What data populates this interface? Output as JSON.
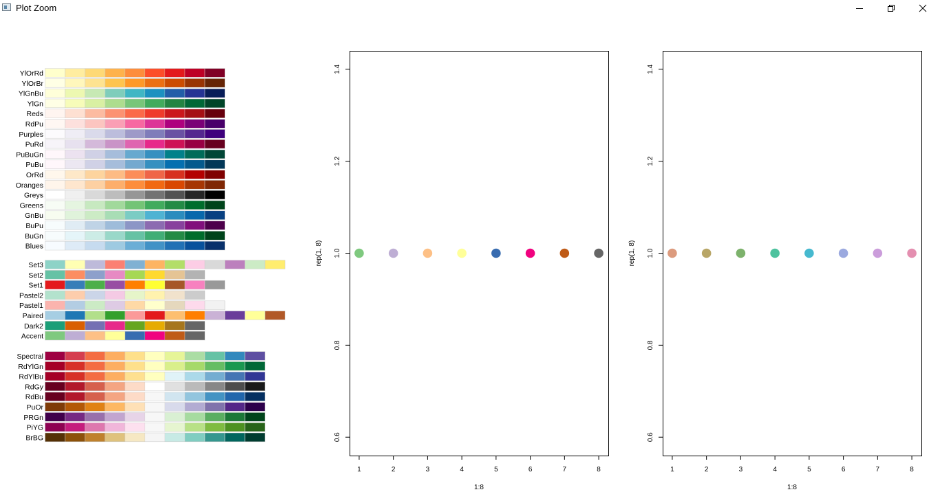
{
  "window": {
    "title": "Plot Zoom",
    "controls": [
      "minimize",
      "restore",
      "close"
    ]
  },
  "palette_display": {
    "sequential": [
      {
        "name": "YlOrRd",
        "colors": [
          "#FFFFCC",
          "#FFEDA0",
          "#FED976",
          "#FEB24C",
          "#FD8D3C",
          "#FC4E2A",
          "#E31A1C",
          "#BD0026",
          "#800026"
        ]
      },
      {
        "name": "YlOrBr",
        "colors": [
          "#FFFFE5",
          "#FFF7BC",
          "#FEE391",
          "#FEC44F",
          "#FE9929",
          "#EC7014",
          "#CC4C02",
          "#993404",
          "#662506"
        ]
      },
      {
        "name": "YlGnBu",
        "colors": [
          "#FFFFD9",
          "#EDF8B1",
          "#C7E9B4",
          "#7FCDBB",
          "#41B6C4",
          "#1D91C0",
          "#225EA8",
          "#253494",
          "#081D58"
        ]
      },
      {
        "name": "YlGn",
        "colors": [
          "#FFFFE5",
          "#F7FCB9",
          "#D9F0A3",
          "#ADDD8E",
          "#78C679",
          "#41AB5D",
          "#238443",
          "#006837",
          "#004529"
        ]
      },
      {
        "name": "Reds",
        "colors": [
          "#FFF5F0",
          "#FEE0D2",
          "#FCBBA1",
          "#FC9272",
          "#FB6A4A",
          "#EF3B2C",
          "#CB181D",
          "#A50F15",
          "#67000D"
        ]
      },
      {
        "name": "RdPu",
        "colors": [
          "#FFF7F3",
          "#FDE0DD",
          "#FCC5C0",
          "#FA9FB5",
          "#F768A1",
          "#DD3497",
          "#AE017E",
          "#7A0177",
          "#49006A"
        ]
      },
      {
        "name": "Purples",
        "colors": [
          "#FCFBFD",
          "#EFEDF5",
          "#DADAEB",
          "#BCBDDC",
          "#9E9AC8",
          "#807DBA",
          "#6A51A3",
          "#54278F",
          "#3F007D"
        ]
      },
      {
        "name": "PuRd",
        "colors": [
          "#F7F4F9",
          "#E7E1EF",
          "#D4B9DA",
          "#C994C7",
          "#DF65B0",
          "#E7298A",
          "#CE1256",
          "#980043",
          "#67001F"
        ]
      },
      {
        "name": "PuBuGn",
        "colors": [
          "#FFF7FB",
          "#ECE2F0",
          "#D0D1E6",
          "#A6BDDB",
          "#67A9CF",
          "#3690C0",
          "#02818A",
          "#016C59",
          "#014636"
        ]
      },
      {
        "name": "PuBu",
        "colors": [
          "#FFF7FB",
          "#ECE7F2",
          "#D0D1E6",
          "#A6BDDB",
          "#74A9CF",
          "#3690C0",
          "#0570B0",
          "#045A8D",
          "#023858"
        ]
      },
      {
        "name": "OrRd",
        "colors": [
          "#FFF7EC",
          "#FEE8C8",
          "#FDD49E",
          "#FDBB84",
          "#FC8D59",
          "#EF6548",
          "#D7301F",
          "#B30000",
          "#7F0000"
        ]
      },
      {
        "name": "Oranges",
        "colors": [
          "#FFF5EB",
          "#FEE6CE",
          "#FDD0A2",
          "#FDAE6B",
          "#FD8D3C",
          "#F16913",
          "#D94801",
          "#A63603",
          "#7F2704"
        ]
      },
      {
        "name": "Greys",
        "colors": [
          "#FFFFFF",
          "#F0F0F0",
          "#D9D9D9",
          "#BDBDBD",
          "#969696",
          "#737373",
          "#525252",
          "#252525",
          "#000000"
        ]
      },
      {
        "name": "Greens",
        "colors": [
          "#F7FCF5",
          "#E5F5E0",
          "#C7E9C0",
          "#A1D99B",
          "#74C476",
          "#41AB5D",
          "#238B45",
          "#006D2C",
          "#00441B"
        ]
      },
      {
        "name": "GnBu",
        "colors": [
          "#F7FCF0",
          "#E0F3DB",
          "#CCEBC5",
          "#A8DDB5",
          "#7BCCC4",
          "#4EB3D3",
          "#2B8CBE",
          "#0868AC",
          "#084081"
        ]
      },
      {
        "name": "BuPu",
        "colors": [
          "#F7FCFD",
          "#E0ECF4",
          "#BFD3E6",
          "#9EBCDA",
          "#8C96C6",
          "#8C6BB1",
          "#88419D",
          "#810F7C",
          "#4D004B"
        ]
      },
      {
        "name": "BuGn",
        "colors": [
          "#F7FCFD",
          "#E5F5F9",
          "#CCECE6",
          "#99D8C9",
          "#66C2A4",
          "#41AE76",
          "#238B45",
          "#006D2C",
          "#00441B"
        ]
      },
      {
        "name": "Blues",
        "colors": [
          "#F7FBFF",
          "#DEEBF7",
          "#C6DBEF",
          "#9ECAE1",
          "#6BAED6",
          "#4292C6",
          "#2171B5",
          "#08519C",
          "#08306B"
        ]
      }
    ],
    "qualitative": [
      {
        "name": "Set3",
        "colors": [
          "#8DD3C7",
          "#FFFFB3",
          "#BEBADA",
          "#FB8072",
          "#80B1D3",
          "#FDB462",
          "#B3DE69",
          "#FCCDE5",
          "#D9D9D9",
          "#BC80BD",
          "#CCEBC5",
          "#FFED6F"
        ]
      },
      {
        "name": "Set2",
        "colors": [
          "#66C2A5",
          "#FC8D62",
          "#8DA0CB",
          "#E78AC3",
          "#A6D854",
          "#FFD92F",
          "#E5C494",
          "#B3B3B3"
        ]
      },
      {
        "name": "Set1",
        "colors": [
          "#E41A1C",
          "#377EB8",
          "#4DAF4A",
          "#984EA3",
          "#FF7F00",
          "#FFFF33",
          "#A65628",
          "#F781BF",
          "#999999"
        ]
      },
      {
        "name": "Pastel2",
        "colors": [
          "#B3E2CD",
          "#FDCDAC",
          "#CBD5E8",
          "#F4CAE4",
          "#E6F5C9",
          "#FFF2AE",
          "#F1E2CC",
          "#CCCCCC"
        ]
      },
      {
        "name": "Pastel1",
        "colors": [
          "#FBB4AE",
          "#B3CDE3",
          "#CCEBC5",
          "#DECBE4",
          "#FED9A6",
          "#FFFFCC",
          "#E5D8BD",
          "#FDDAEC",
          "#F2F2F2"
        ]
      },
      {
        "name": "Paired",
        "colors": [
          "#A6CEE3",
          "#1F78B4",
          "#B2DF8A",
          "#33A02C",
          "#FB9A99",
          "#E31A1C",
          "#FDBF6F",
          "#FF7F00",
          "#CAB2D6",
          "#6A3D9A",
          "#FFFF99",
          "#B15928"
        ]
      },
      {
        "name": "Dark2",
        "colors": [
          "#1B9E77",
          "#D95F02",
          "#7570B3",
          "#E7298A",
          "#66A61E",
          "#E6AB02",
          "#A6761D",
          "#666666"
        ]
      },
      {
        "name": "Accent",
        "colors": [
          "#7FC97F",
          "#BEAED4",
          "#FDC086",
          "#FFFF99",
          "#386CB0",
          "#F0027F",
          "#BF5B17",
          "#666666"
        ]
      }
    ],
    "diverging": [
      {
        "name": "Spectral",
        "colors": [
          "#9E0142",
          "#D53E4F",
          "#F46D43",
          "#FDAE61",
          "#FEE08B",
          "#FFFFBF",
          "#E6F598",
          "#ABDDA4",
          "#66C2A5",
          "#3288BD",
          "#5E4FA2"
        ]
      },
      {
        "name": "RdYlGn",
        "colors": [
          "#A50026",
          "#D73027",
          "#F46D43",
          "#FDAE61",
          "#FEE08B",
          "#FFFFBF",
          "#D9EF8B",
          "#A6D96A",
          "#66BD63",
          "#1A9850",
          "#006837"
        ]
      },
      {
        "name": "RdYlBu",
        "colors": [
          "#A50026",
          "#D73027",
          "#F46D43",
          "#FDAE61",
          "#FEE090",
          "#FFFFBF",
          "#E0F3F8",
          "#ABD9E9",
          "#74ADD1",
          "#4575B4",
          "#313695"
        ]
      },
      {
        "name": "RdGy",
        "colors": [
          "#67001F",
          "#B2182B",
          "#D6604D",
          "#F4A582",
          "#FDDBC7",
          "#FFFFFF",
          "#E0E0E0",
          "#BABABA",
          "#878787",
          "#4D4D4D",
          "#1A1A1A"
        ]
      },
      {
        "name": "RdBu",
        "colors": [
          "#67001F",
          "#B2182B",
          "#D6604D",
          "#F4A582",
          "#FDDBC7",
          "#F7F7F7",
          "#D1E5F0",
          "#92C5DE",
          "#4393C3",
          "#2166AC",
          "#053061"
        ]
      },
      {
        "name": "PuOr",
        "colors": [
          "#7F3B08",
          "#B35806",
          "#E08214",
          "#FDB863",
          "#FEE0B6",
          "#F7F7F7",
          "#D8DAEB",
          "#B2ABD2",
          "#8073AC",
          "#542788",
          "#2D004B"
        ]
      },
      {
        "name": "PRGn",
        "colors": [
          "#40004B",
          "#762A83",
          "#9970AB",
          "#C2A5CF",
          "#E7D4E8",
          "#F7F7F7",
          "#D9F0D3",
          "#A6DBA0",
          "#5AAE61",
          "#1B7837",
          "#00441B"
        ]
      },
      {
        "name": "PiYG",
        "colors": [
          "#8E0152",
          "#C51B7D",
          "#DE77AE",
          "#F1B6DA",
          "#FDE0EF",
          "#F7F7F7",
          "#E6F5D0",
          "#B8E186",
          "#7FBC41",
          "#4D9221",
          "#276419"
        ]
      },
      {
        "name": "BrBG",
        "colors": [
          "#543005",
          "#8C510A",
          "#BF812D",
          "#DFC27D",
          "#F6E8C3",
          "#F5F5F5",
          "#C7EAE5",
          "#80CDC1",
          "#35978F",
          "#01665E",
          "#003C30"
        ]
      }
    ]
  },
  "chart_data": [
    {
      "type": "scatter",
      "xlabel": "1:8",
      "ylabel": "rep(1, 8)",
      "x": [
        1,
        2,
        3,
        4,
        5,
        6,
        7,
        8
      ],
      "y": [
        1,
        1,
        1,
        1,
        1,
        1,
        1,
        1
      ],
      "point_colors": [
        "#7FC97F",
        "#BEAED4",
        "#FDC086",
        "#FFFF99",
        "#386CB0",
        "#F0027F",
        "#BF5B17",
        "#666666"
      ],
      "xlim": [
        0.72,
        8.28
      ],
      "ylim": [
        0.56,
        1.44
      ],
      "xticks": [
        1,
        2,
        3,
        4,
        5,
        6,
        7,
        8
      ],
      "yticks": [
        0.6,
        0.8,
        1.0,
        1.2,
        1.4
      ],
      "ytick_labels": [
        "0.6",
        "0.8",
        "1.0",
        "1.2",
        "1.4"
      ]
    },
    {
      "type": "scatter",
      "xlabel": "1:8",
      "ylabel": "rep(1, 8)",
      "x": [
        1,
        2,
        3,
        4,
        5,
        6,
        7,
        8
      ],
      "y": [
        1,
        1,
        1,
        1,
        1,
        1,
        1,
        1
      ],
      "point_colors": [
        "#DC9B7E",
        "#B8A667",
        "#7DB26C",
        "#4DC29E",
        "#46B9CF",
        "#9BA9DF",
        "#CB9DDB",
        "#E48FB0"
      ],
      "xlim": [
        0.72,
        8.28
      ],
      "ylim": [
        0.56,
        1.44
      ],
      "xticks": [
        1,
        2,
        3,
        4,
        5,
        6,
        7,
        8
      ],
      "yticks": [
        0.6,
        0.8,
        1.0,
        1.2,
        1.4
      ],
      "ytick_labels": [
        "0.6",
        "0.8",
        "1.0",
        "1.2",
        "1.4"
      ]
    }
  ]
}
